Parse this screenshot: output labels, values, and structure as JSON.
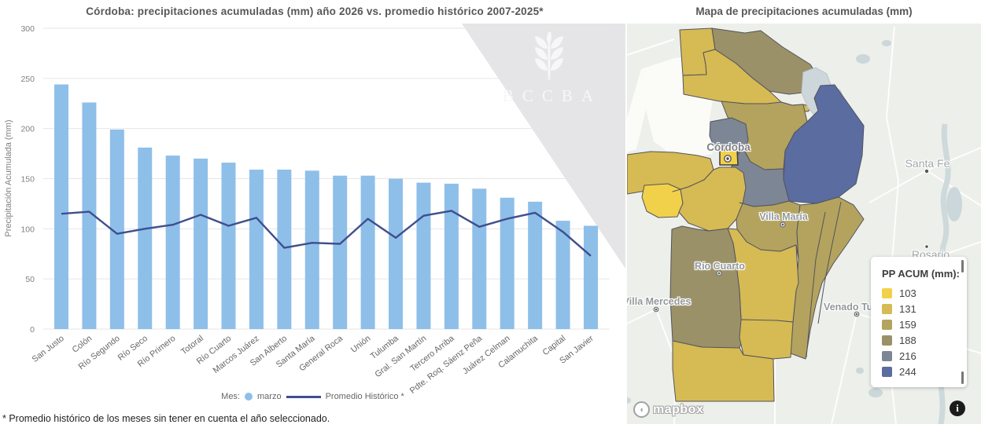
{
  "chart": {
    "title": "Córdoba: precipitaciones acumuladas (mm) año 2026 vs. promedio histórico 2007-2025*",
    "y_axis_label": "Precipitación Acumulada (mm)",
    "legend_prefix": "Mes:",
    "legend_bar_label": "marzo",
    "legend_line_label": "Promedio Histórico *",
    "footnote": "* Promedio histórico de los meses sin tener en cuenta el año seleccionado.",
    "watermark_text": "BCCBA",
    "bar_color": "#8ebfe9",
    "line_color": "#3f4e8e"
  },
  "chart_data": {
    "type": "bar",
    "title": "Córdoba: precipitaciones acumuladas (mm) año 2026 vs. promedio histórico 2007-2025*",
    "xlabel": "",
    "ylabel": "Precipitación Acumulada (mm)",
    "ylim": [
      0,
      300
    ],
    "yticks": [
      0,
      50,
      100,
      150,
      200,
      250,
      300
    ],
    "grid": true,
    "legend_position": "bottom",
    "categories": [
      "San Justo",
      "Colón",
      "Río Segundo",
      "Río Seco",
      "Río Primero",
      "Totoral",
      "Río Cuarto",
      "Marcos Juárez",
      "San Alberto",
      "Santa María",
      "General Roca",
      "Unión",
      "Tulumba",
      "Gral. San Martín",
      "Tercero Arriba",
      "Pdte. Roq. Sáenz Peña",
      "Juárez Celman",
      "Calamuchita",
      "Capital",
      "San Javier"
    ],
    "series": [
      {
        "name": "marzo",
        "type": "bar",
        "values": [
          244,
          226,
          199,
          181,
          173,
          170,
          166,
          159,
          159,
          158,
          153,
          153,
          150,
          146,
          145,
          140,
          131,
          127,
          108,
          103
        ]
      },
      {
        "name": "Promedio Histórico *",
        "type": "line",
        "values": [
          115,
          117,
          95,
          100,
          104,
          114,
          103,
          111,
          81,
          86,
          85,
          110,
          91,
          113,
          118,
          102,
          110,
          116,
          97,
          73
        ]
      }
    ]
  },
  "map": {
    "title": "Mapa de precipitaciones acumuladas (mm)",
    "legend_title": "PP ACUM (mm):",
    "legend_items": [
      {
        "value": "103",
        "color": "#f2d14a"
      },
      {
        "value": "131",
        "color": "#d6ba53"
      },
      {
        "value": "159",
        "color": "#b3a35e"
      },
      {
        "value": "188",
        "color": "#9a9169"
      },
      {
        "value": "216",
        "color": "#7d8694"
      },
      {
        "value": "244",
        "color": "#5a6ca0"
      }
    ],
    "cities": [
      {
        "name": "Córdoba"
      },
      {
        "name": "Villa María"
      },
      {
        "name": "Río Cuarto"
      },
      {
        "name": "Villa Mercedes"
      },
      {
        "name": "Venado Tuerto"
      },
      {
        "name": "Santa Fe"
      },
      {
        "name": "Rosario"
      }
    ],
    "attribution": "mapbox",
    "info_label": "i"
  }
}
